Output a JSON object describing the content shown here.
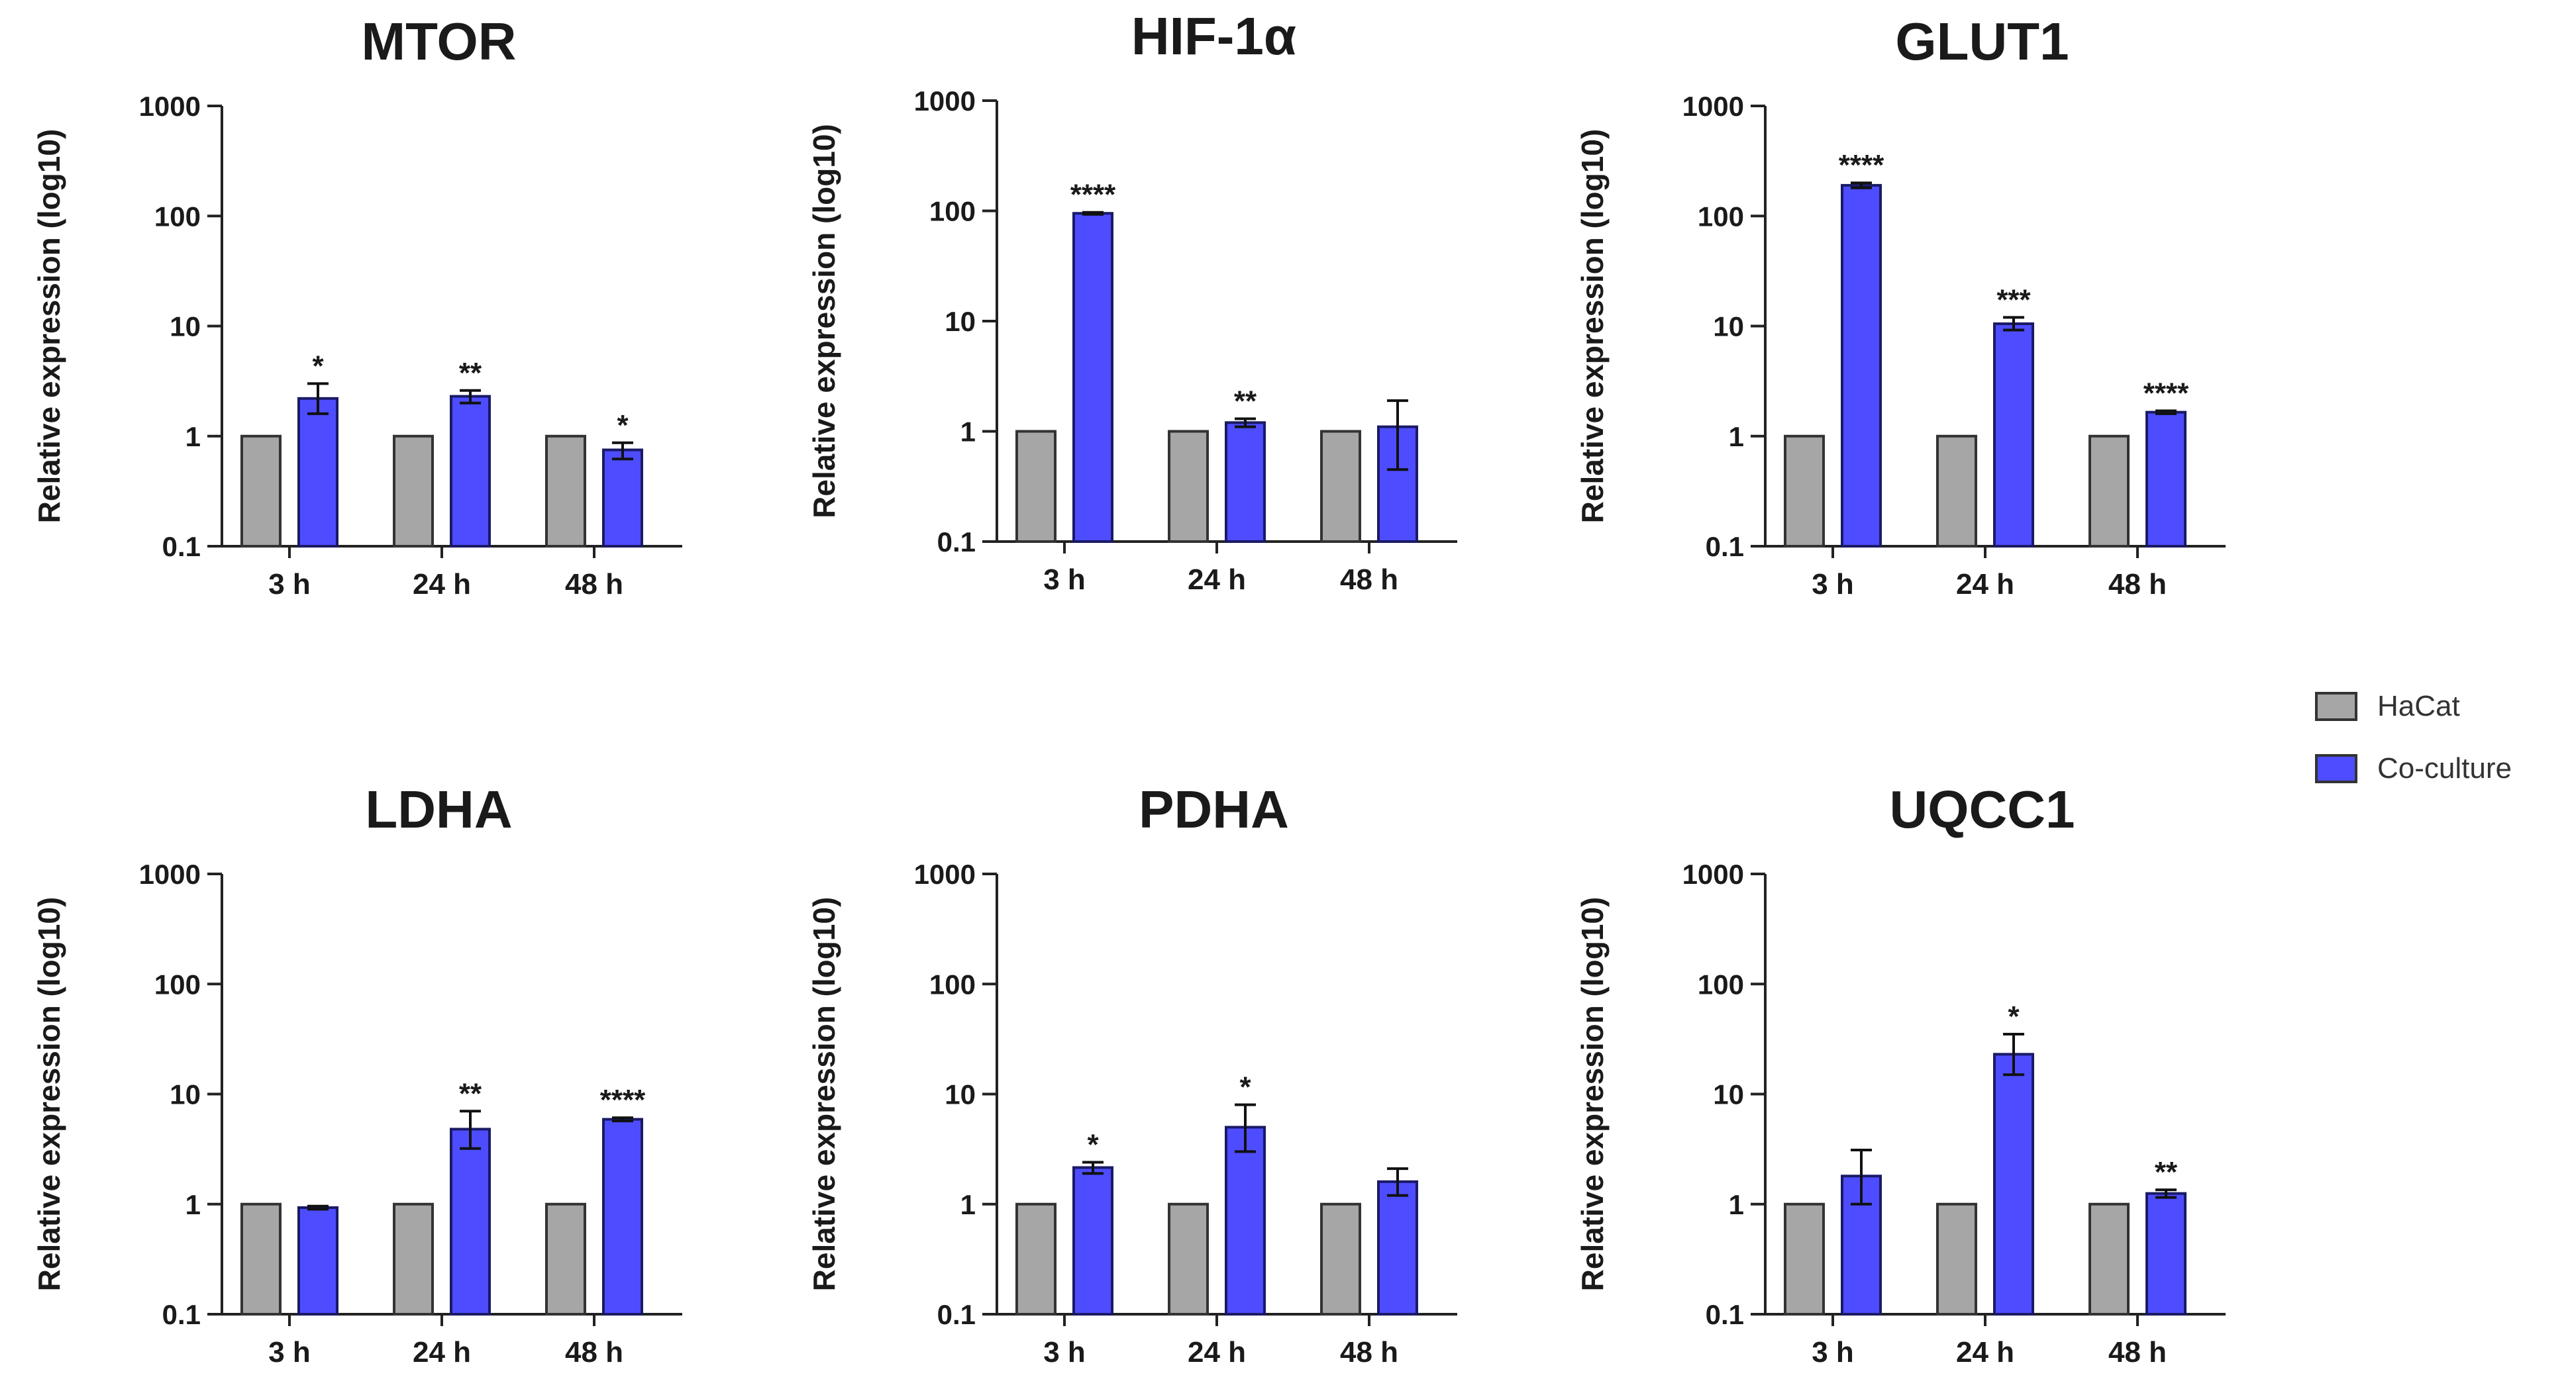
{
  "colors": {
    "hacat": "#a6a6a6",
    "coculture": "#4d4dff",
    "axis": "#222222"
  },
  "legend": {
    "items": [
      {
        "label": "HaCat"
      },
      {
        "label": "Co-culture"
      }
    ]
  },
  "chart_data": [
    {
      "type": "bar",
      "title": "MTOR",
      "ylabel": "Relative expression (log10)",
      "yscale": "log",
      "ylim": [
        0.1,
        1000
      ],
      "yticks": [
        "0.1",
        "1",
        "10",
        "100",
        "1000"
      ],
      "categories": [
        "3 h",
        "24 h",
        "48 h"
      ],
      "series": [
        {
          "name": "HaCat",
          "values": [
            1,
            1,
            1
          ]
        },
        {
          "name": "Co-culture",
          "values": [
            2.2,
            2.3,
            0.75
          ],
          "error_low": [
            1.6,
            2.0,
            0.62
          ],
          "error_high": [
            3.0,
            2.6,
            0.87
          ],
          "significance": [
            "*",
            "**",
            "*"
          ]
        }
      ]
    },
    {
      "type": "bar",
      "title": "HIF-1α",
      "ylabel": "Relative expression (log10)",
      "yscale": "log",
      "ylim": [
        0.1,
        1000
      ],
      "yticks": [
        "0.1",
        "1",
        "10",
        "100",
        "1000"
      ],
      "categories": [
        "3 h",
        "24 h",
        "48 h"
      ],
      "series": [
        {
          "name": "HaCat",
          "values": [
            1,
            1,
            1
          ]
        },
        {
          "name": "Co-culture",
          "values": [
            95,
            1.2,
            1.1
          ],
          "error_low": [
            93,
            1.1,
            0.45
          ],
          "error_high": [
            97,
            1.3,
            1.9
          ],
          "significance": [
            "****",
            "**",
            ""
          ]
        }
      ]
    },
    {
      "type": "bar",
      "title": "GLUT1",
      "ylabel": "Relative expression (log10)",
      "yscale": "log",
      "ylim": [
        0.1,
        1000
      ],
      "yticks": [
        "0.1",
        "1",
        "10",
        "100",
        "1000"
      ],
      "categories": [
        "3 h",
        "24 h",
        "48 h"
      ],
      "series": [
        {
          "name": "HaCat",
          "values": [
            1,
            1,
            1
          ]
        },
        {
          "name": "Co-culture",
          "values": [
            190,
            10.5,
            1.65
          ],
          "error_low": [
            180,
            9.2,
            1.6
          ],
          "error_high": [
            200,
            12,
            1.7
          ],
          "significance": [
            "****",
            "***",
            "****"
          ]
        }
      ]
    },
    {
      "type": "bar",
      "title": "LDHA",
      "ylabel": "Relative expression (log10)",
      "yscale": "log",
      "ylim": [
        0.1,
        1000
      ],
      "yticks": [
        "0.1",
        "1",
        "10",
        "100",
        "1000"
      ],
      "categories": [
        "3 h",
        "24 h",
        "48 h"
      ],
      "series": [
        {
          "name": "HaCat",
          "values": [
            1,
            1,
            1
          ]
        },
        {
          "name": "Co-culture",
          "values": [
            0.93,
            4.8,
            5.9
          ],
          "error_low": [
            0.9,
            3.2,
            5.7
          ],
          "error_high": [
            0.96,
            7.0,
            6.1
          ],
          "significance": [
            "",
            "**",
            "****"
          ]
        }
      ]
    },
    {
      "type": "bar",
      "title": "PDHA",
      "ylabel": "Relative expression (log10)",
      "yscale": "log",
      "ylim": [
        0.1,
        1000
      ],
      "yticks": [
        "0.1",
        "1",
        "10",
        "100",
        "1000"
      ],
      "categories": [
        "3 h",
        "24 h",
        "48 h"
      ],
      "series": [
        {
          "name": "HaCat",
          "values": [
            1,
            1,
            1
          ]
        },
        {
          "name": "Co-culture",
          "values": [
            2.15,
            5.0,
            1.6
          ],
          "error_low": [
            1.9,
            3.0,
            1.2
          ],
          "error_high": [
            2.4,
            8.0,
            2.1
          ],
          "significance": [
            "*",
            "*",
            ""
          ]
        }
      ]
    },
    {
      "type": "bar",
      "title": "UQCC1",
      "ylabel": "Relative expression (log10)",
      "yscale": "log",
      "ylim": [
        0.1,
        1000
      ],
      "yticks": [
        "0.1",
        "1",
        "10",
        "100",
        "1000"
      ],
      "categories": [
        "3 h",
        "24 h",
        "48 h"
      ],
      "series": [
        {
          "name": "HaCat",
          "values": [
            1,
            1,
            1
          ]
        },
        {
          "name": "Co-culture",
          "values": [
            1.8,
            23,
            1.25
          ],
          "error_low": [
            1.0,
            15,
            1.15
          ],
          "error_high": [
            3.1,
            35,
            1.35
          ],
          "significance": [
            "",
            "*",
            "**"
          ]
        }
      ]
    }
  ]
}
